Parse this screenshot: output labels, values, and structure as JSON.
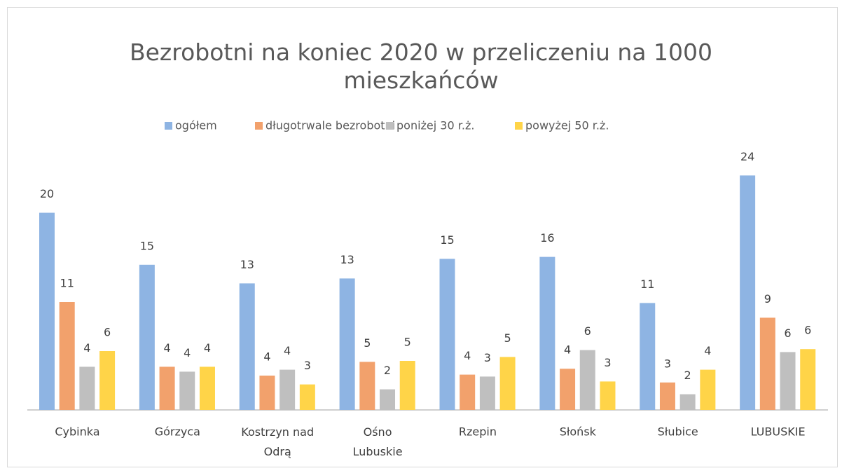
{
  "chart_data": {
    "type": "bar",
    "title": "Bezrobotni na koniec 2020 w przeliczeniu na 1000 mieszkańców",
    "categories": [
      "Cybinka",
      "Górzyca",
      "Kostrzyn nad Odrą",
      "Ośno Lubuskie",
      "Rzepin",
      "Słońsk",
      "Słubice",
      "LUBUSKIE"
    ],
    "series": [
      {
        "name": "ogółem",
        "color": "#8eb4e3",
        "values": [
          20.1,
          14.8,
          12.9,
          13.4,
          15.4,
          15.6,
          10.9,
          23.9
        ],
        "value_labels": [
          "20",
          "15",
          "13",
          "13",
          "15",
          "16",
          "11",
          "24"
        ]
      },
      {
        "name": "długotrwale bezrobotni",
        "color": "#f2a16c",
        "values": [
          11.0,
          4.4,
          3.5,
          4.9,
          3.6,
          4.2,
          2.8,
          9.4
        ],
        "value_labels": [
          "11",
          "4",
          "4",
          "5",
          "4",
          "4",
          "3",
          "9"
        ]
      },
      {
        "name": "poniżej 30 r.ż.",
        "color": "#bfbfbf",
        "values": [
          4.4,
          3.9,
          4.1,
          2.1,
          3.4,
          6.1,
          1.6,
          5.9
        ],
        "value_labels": [
          "4",
          "4",
          "4",
          "2",
          "3",
          "6",
          "2",
          "6"
        ]
      },
      {
        "name": "powyżej 50 r.ż.",
        "color": "#ffd448",
        "values": [
          6.0,
          4.4,
          2.6,
          5.0,
          5.4,
          2.9,
          4.1,
          6.2
        ],
        "value_labels": [
          "6",
          "4",
          "3",
          "5",
          "5",
          "3",
          "4",
          "6"
        ]
      }
    ],
    "ylim": [
      0,
      27
    ],
    "legend": "top"
  }
}
